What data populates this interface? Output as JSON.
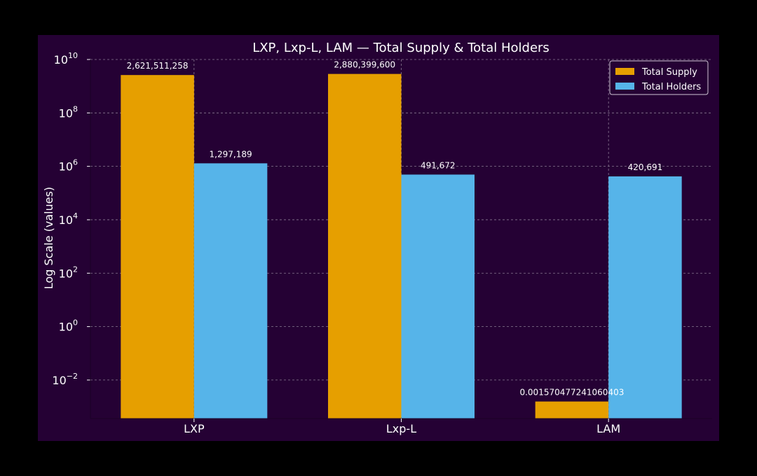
{
  "chart_data": {
    "type": "bar",
    "title": "LXP, Lxp-L, LAM — Total Supply & Total Holders",
    "xlabel": "",
    "ylabel": "Log Scale (values)",
    "yscale": "log",
    "ylim": [
      0.00036,
      10000000000
    ],
    "categories": [
      "LXP",
      "Lxp-L",
      "LAM"
    ],
    "series": [
      {
        "name": "Total Supply",
        "color": "#E69F00",
        "values": [
          2621511258,
          2880399600,
          0.001570477241060403
        ],
        "labels": [
          "2,621,511,258",
          "2,880,399,600",
          "0.001570477241060403"
        ]
      },
      {
        "name": "Total Holders",
        "color": "#56B4E9",
        "values": [
          1297189,
          491672,
          420691
        ],
        "labels": [
          "1,297,189",
          "491,672",
          "420,691"
        ]
      }
    ],
    "yticks": [
      {
        "value": 10000000000,
        "base": "10",
        "exp": "10"
      },
      {
        "value": 100000000,
        "base": "10",
        "exp": "8"
      },
      {
        "value": 1000000,
        "base": "10",
        "exp": "6"
      },
      {
        "value": 10000,
        "base": "10",
        "exp": "4"
      },
      {
        "value": 100,
        "base": "10",
        "exp": "2"
      },
      {
        "value": 1,
        "base": "10",
        "exp": "0"
      },
      {
        "value": 0.01,
        "base": "10",
        "exp": "−2"
      }
    ],
    "grid": true,
    "legend_position": "top-right",
    "colors": {
      "background": "#250134",
      "text": "#FFFFFF",
      "grid": "#8a7a92",
      "page": "#000000"
    }
  }
}
